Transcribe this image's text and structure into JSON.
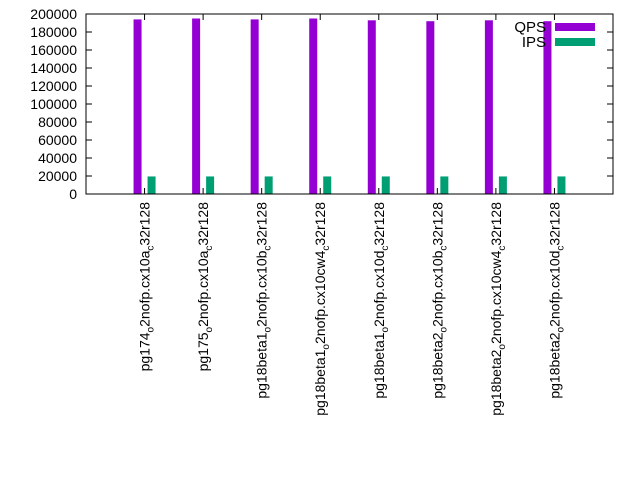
{
  "chart_data": {
    "type": "bar",
    "title": "",
    "xlabel": "",
    "ylabel": "",
    "ylim": [
      0,
      200000
    ],
    "yticks": [
      0,
      20000,
      40000,
      60000,
      80000,
      100000,
      120000,
      140000,
      160000,
      180000,
      200000
    ],
    "grid": false,
    "legend_position": "top-right",
    "categories": [
      {
        "base": "pg174",
        "sub": "o",
        "mid": "2nofp.cx10a",
        "sub2": "c",
        "end": "32r128"
      },
      {
        "base": "pg175",
        "sub": "o",
        "mid": "2nofp.cx10a",
        "sub2": "c",
        "end": "32r128"
      },
      {
        "base": "pg18beta1",
        "sub": "o",
        "mid": "2nofp.cx10b",
        "sub2": "c",
        "end": "32r128"
      },
      {
        "base": "pg18beta1",
        "sub": "o",
        "mid": "2nofp.cx10cw4",
        "sub2": "c",
        "end": "32r128"
      },
      {
        "base": "pg18beta1",
        "sub": "o",
        "mid": "2nofp.cx10d",
        "sub2": "c",
        "end": "32r128"
      },
      {
        "base": "pg18beta2",
        "sub": "o",
        "mid": "2nofp.cx10b",
        "sub2": "c",
        "end": "32r128"
      },
      {
        "base": "pg18beta2",
        "sub": "o",
        "mid": "2nofp.cx10cw4",
        "sub2": "c",
        "end": "32r128"
      },
      {
        "base": "pg18beta2",
        "sub": "o",
        "mid": "2nofp.cx10d",
        "sub2": "c",
        "end": "32r128"
      }
    ],
    "series": [
      {
        "name": "QPS",
        "color": "#9400d3",
        "values": [
          194000,
          195000,
          194000,
          195000,
          193000,
          192000,
          193000,
          192000
        ]
      },
      {
        "name": "IPS",
        "color": "#009e73",
        "values": [
          19500,
          19500,
          19500,
          19500,
          19500,
          19500,
          19500,
          19500
        ]
      }
    ]
  }
}
